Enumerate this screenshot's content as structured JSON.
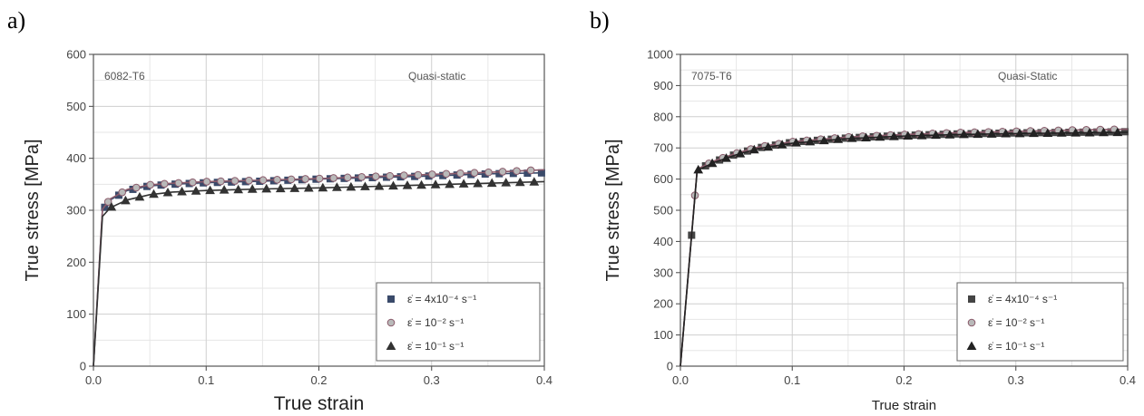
{
  "chart_data": [
    {
      "panel_label": "a)",
      "type": "line",
      "material_label": "6082-T6",
      "condition_label": "Quasi-static",
      "xlabel": "True strain",
      "ylabel": "True stress [MPa]",
      "xlim": [
        0,
        0.4
      ],
      "ylim": [
        0,
        600
      ],
      "xticks": [
        "0.0",
        "0.1",
        "0.2",
        "0.3",
        "0.4"
      ],
      "yticks": [
        "0",
        "100",
        "200",
        "300",
        "400",
        "500",
        "600"
      ],
      "grid": true,
      "legend_position": "bottom-right",
      "series": [
        {
          "name": "ε̇ = 4x10⁻⁴ s⁻¹",
          "marker": "square",
          "color": "#3a4a6a",
          "x": [
            0,
            0.008,
            0.015,
            0.03,
            0.05,
            0.07,
            0.1,
            0.15,
            0.2,
            0.25,
            0.3,
            0.35,
            0.4
          ],
          "y": [
            0,
            300,
            320,
            338,
            347,
            350,
            353,
            356,
            360,
            363,
            366,
            370,
            372
          ]
        },
        {
          "name": "ε̇ = 10⁻² s⁻¹",
          "marker": "circle",
          "color": "#8a5a6a",
          "x": [
            0,
            0.008,
            0.015,
            0.03,
            0.05,
            0.07,
            0.1,
            0.15,
            0.2,
            0.25,
            0.3,
            0.35,
            0.4
          ],
          "y": [
            0,
            302,
            322,
            340,
            349,
            352,
            355,
            358,
            361,
            365,
            369,
            373,
            378
          ]
        },
        {
          "name": "ε̇ = 10⁻¹ s⁻¹",
          "marker": "triangle",
          "color": "#333333",
          "x": [
            0,
            0.008,
            0.015,
            0.03,
            0.05,
            0.07,
            0.1,
            0.15,
            0.2,
            0.25,
            0.3,
            0.35,
            0.4
          ],
          "y": [
            0,
            288,
            305,
            320,
            330,
            335,
            338,
            341,
            343,
            346,
            349,
            352,
            355
          ]
        }
      ],
      "legend": [
        "ε̇ = 4x10⁻⁴ s⁻¹",
        "ε̇ = 10⁻² s⁻¹",
        "ε̇ = 10⁻¹ s⁻¹"
      ]
    },
    {
      "panel_label": "b)",
      "type": "line",
      "material_label": "7075-T6",
      "condition_label": "Quasi-Static",
      "xlabel": "True strain",
      "ylabel": "True stress [MPa]",
      "xlim": [
        0,
        0.4
      ],
      "ylim": [
        0,
        1000
      ],
      "xticks": [
        "0.0",
        "0.1",
        "0.2",
        "0.3",
        "0.4"
      ],
      "yticks": [
        "0",
        "100",
        "200",
        "300",
        "400",
        "500",
        "600",
        "700",
        "800",
        "900",
        "1000"
      ],
      "grid": true,
      "legend_position": "bottom-right",
      "series": [
        {
          "name": "ε̇ = 4x10⁻⁴ s⁻¹",
          "marker": "square",
          "color": "#444444",
          "x": [
            0,
            0.015,
            0.03,
            0.05,
            0.07,
            0.1,
            0.15,
            0.2,
            0.25,
            0.3,
            0.35,
            0.4
          ],
          "y": [
            0,
            630,
            655,
            680,
            700,
            718,
            732,
            740,
            745,
            748,
            750,
            752
          ]
        },
        {
          "name": "ε̇ = 10⁻² s⁻¹",
          "marker": "circle",
          "color": "#8a5a6a",
          "x": [
            0,
            0.015,
            0.03,
            0.05,
            0.07,
            0.1,
            0.15,
            0.2,
            0.25,
            0.3,
            0.35,
            0.4
          ],
          "y": [
            0,
            632,
            658,
            683,
            703,
            720,
            735,
            743,
            749,
            753,
            757,
            760
          ]
        },
        {
          "name": "ε̇ = 10⁻¹ s⁻¹",
          "marker": "triangle",
          "color": "#222222",
          "x": [
            0,
            0.015,
            0.03,
            0.05,
            0.07,
            0.1,
            0.15,
            0.2,
            0.25,
            0.3,
            0.35,
            0.4
          ],
          "y": [
            0,
            628,
            653,
            678,
            698,
            715,
            730,
            738,
            743,
            746,
            748,
            750
          ]
        }
      ],
      "legend": [
        "ε̇ = 4x10⁻⁴ s⁻¹",
        "ε̇ = 10⁻² s⁻¹",
        "ε̇ = 10⁻¹ s⁻¹"
      ]
    }
  ]
}
